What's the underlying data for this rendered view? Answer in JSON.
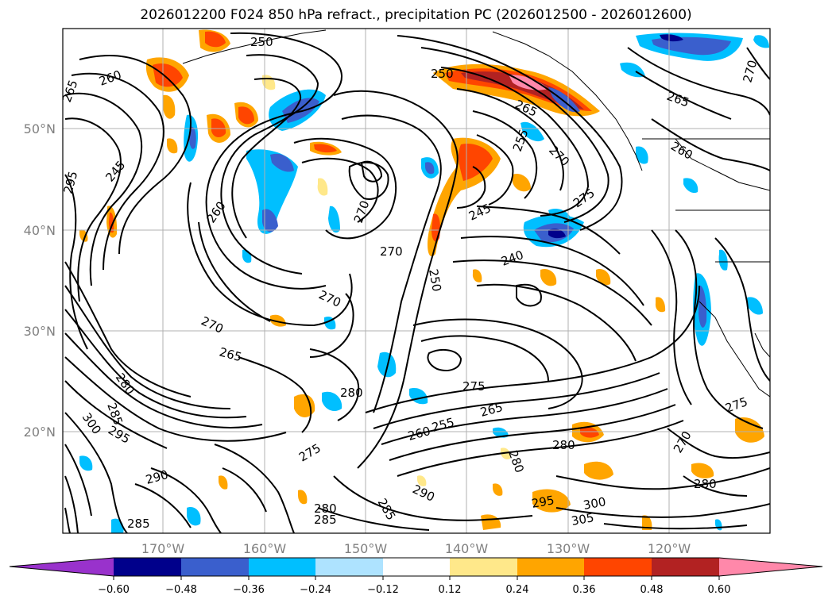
{
  "title": "2026012200 F024 850 hPa refract., precipitation PC (2026012500 - 2026012600)",
  "latitude_labels": [
    "50°N",
    "40°N",
    "30°N",
    "20°N"
  ],
  "longitude_labels": [
    "170°W",
    "160°W",
    "150°W",
    "140°W",
    "130°W",
    "120°W"
  ],
  "colorbar": {
    "ticks": [
      "−0.60",
      "−0.48",
      "−0.36",
      "−0.24",
      "−0.12",
      "0.12",
      "0.24",
      "0.36",
      "0.48",
      "0.60"
    ],
    "colors": [
      "#9932cc",
      "#00008b",
      "#3a5fcd",
      "#00bfff",
      "#aee3ff",
      "#ffffff",
      "#ffe88a",
      "#ffa500",
      "#ff4500",
      "#b22222",
      "#ff88aa"
    ]
  },
  "contour_labels": [
    "250",
    "260",
    "265",
    "245",
    "295",
    "260",
    "270",
    "265",
    "270",
    "270",
    "280",
    "285",
    "290",
    "300",
    "295",
    "285",
    "275",
    "280",
    "290",
    "295",
    "300",
    "305",
    "275",
    "280",
    "280",
    "285",
    "265",
    "260",
    "255",
    "250",
    "245",
    "240",
    "265",
    "270",
    "275",
    "260",
    "255",
    "250",
    "270",
    "270",
    "265",
    "275",
    "280",
    "285",
    "280",
    "270"
  ],
  "precip_colors": {
    "orange": "#ffa500",
    "red": "#ff4500",
    "darkred": "#b22222",
    "pink": "#ff88aa",
    "yellow": "#ffe88a",
    "cyan": "#00bfff",
    "lightblue": "#aee3ff",
    "blue": "#3a5fcd",
    "navy": "#00008b"
  },
  "grid_color": "#b0b0b0"
}
